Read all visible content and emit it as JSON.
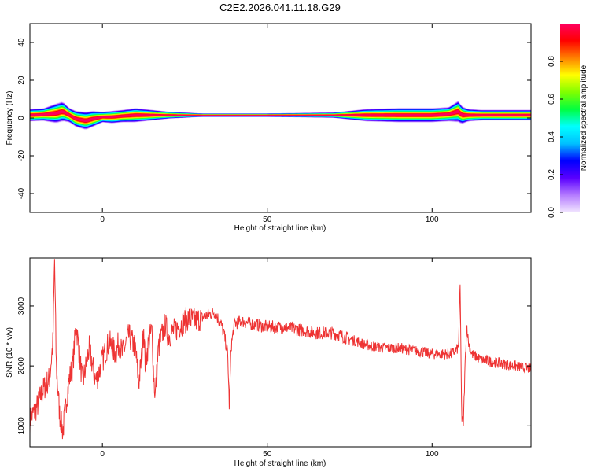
{
  "figure_title": "C2E2.2026.041.11.18.G29",
  "chart_data": [
    {
      "type": "heatmap",
      "xlabel": "Height of straight line (km)",
      "ylabel": "Frequency (Hz)",
      "xlim": [
        -22,
        130
      ],
      "ylim": [
        -50,
        50
      ],
      "xticks": [
        0,
        50,
        100
      ],
      "yticks": [
        -40,
        -20,
        0,
        20,
        40
      ],
      "colorbar": {
        "label": "Normalized spectral amplitude",
        "range": [
          0,
          1
        ],
        "ticks": [
          0.0,
          0.2,
          0.4,
          0.6,
          0.8
        ],
        "tick_labels": [
          "0.0",
          "0.2",
          "0.4",
          "0.6",
          "0.8"
        ],
        "colors": [
          "#f2e6ff",
          "#b57cff",
          "#5a00ff",
          "#0000ff",
          "#00bfff",
          "#00ffff",
          "#00ff40",
          "#80ff00",
          "#ffff00",
          "#ff8000",
          "#ff0000",
          "#ff0060"
        ]
      },
      "ridge": {
        "x": [
          -22,
          -18,
          -14,
          -12,
          -10,
          -8,
          -5,
          -3,
          0,
          3,
          6,
          10,
          15,
          20,
          30,
          50,
          70,
          80,
          90,
          100,
          105,
          108,
          109,
          111,
          115,
          130
        ],
        "freq": [
          1.5,
          1.8,
          2.5,
          3.5,
          1.5,
          -0.5,
          -1.5,
          -0.5,
          0.5,
          0.5,
          1.0,
          1.5,
          1.5,
          1.5,
          1.5,
          1.5,
          1.5,
          1.5,
          1.5,
          1.5,
          2.0,
          3.5,
          1.5,
          1.5,
          1.5,
          1.5
        ],
        "halfwidth_hz": [
          3.5,
          3.5,
          5.5,
          5.5,
          4.0,
          4.5,
          5.0,
          4.5,
          3.0,
          3.5,
          3.5,
          4.0,
          3.0,
          2.0,
          1.0,
          1.0,
          1.5,
          3.5,
          4.0,
          4.0,
          4.0,
          6.0,
          5.0,
          3.5,
          3.0,
          3.0
        ]
      }
    },
    {
      "type": "line",
      "xlabel": "Height of straight line (km)",
      "ylabel": "SNR (10 * v/v)",
      "xlim": [
        -22,
        130
      ],
      "ylim": [
        650,
        3800
      ],
      "xticks": [
        0,
        50,
        100
      ],
      "yticks": [
        1000,
        2000,
        3000
      ],
      "series": [
        {
          "color": "#ee3333",
          "x": [
            -22,
            -20,
            -18,
            -16,
            -15,
            -14.5,
            -14,
            -13,
            -12,
            -11,
            -10,
            -9,
            -8,
            -6,
            -4,
            -3,
            -2,
            -1,
            0,
            2,
            4,
            5,
            6,
            8,
            10,
            11,
            12,
            12.5,
            13,
            14,
            15,
            15.5,
            16,
            17,
            18,
            19,
            20,
            22,
            24,
            26,
            28,
            30,
            32,
            34,
            35,
            36,
            37,
            38,
            38.5,
            39,
            40,
            42,
            45,
            50,
            55,
            60,
            65,
            70,
            75,
            80,
            85,
            90,
            95,
            100,
            104,
            106,
            107,
            108,
            108.5,
            109,
            109.5,
            110,
            110.5,
            111,
            112,
            115,
            120,
            125,
            130
          ],
          "y": [
            1100,
            1300,
            1600,
            1800,
            2400,
            3800,
            2000,
            1200,
            900,
            1400,
            1800,
            2000,
            2700,
            1700,
            2300,
            2000,
            1750,
            1900,
            2100,
            2400,
            2200,
            2400,
            2200,
            2500,
            2300,
            1700,
            2200,
            2700,
            2000,
            2400,
            2600,
            1900,
            1500,
            2300,
            2500,
            2700,
            2500,
            2600,
            2700,
            2800,
            2750,
            2800,
            2850,
            2900,
            2800,
            2700,
            2500,
            2200,
            1300,
            2300,
            2700,
            2750,
            2700,
            2650,
            2650,
            2600,
            2550,
            2550,
            2450,
            2350,
            2300,
            2300,
            2250,
            2200,
            2200,
            2200,
            2250,
            2300,
            3350,
            1100,
            1050,
            2000,
            2700,
            2400,
            2200,
            2100,
            2050,
            2000,
            1950
          ]
        }
      ]
    }
  ]
}
